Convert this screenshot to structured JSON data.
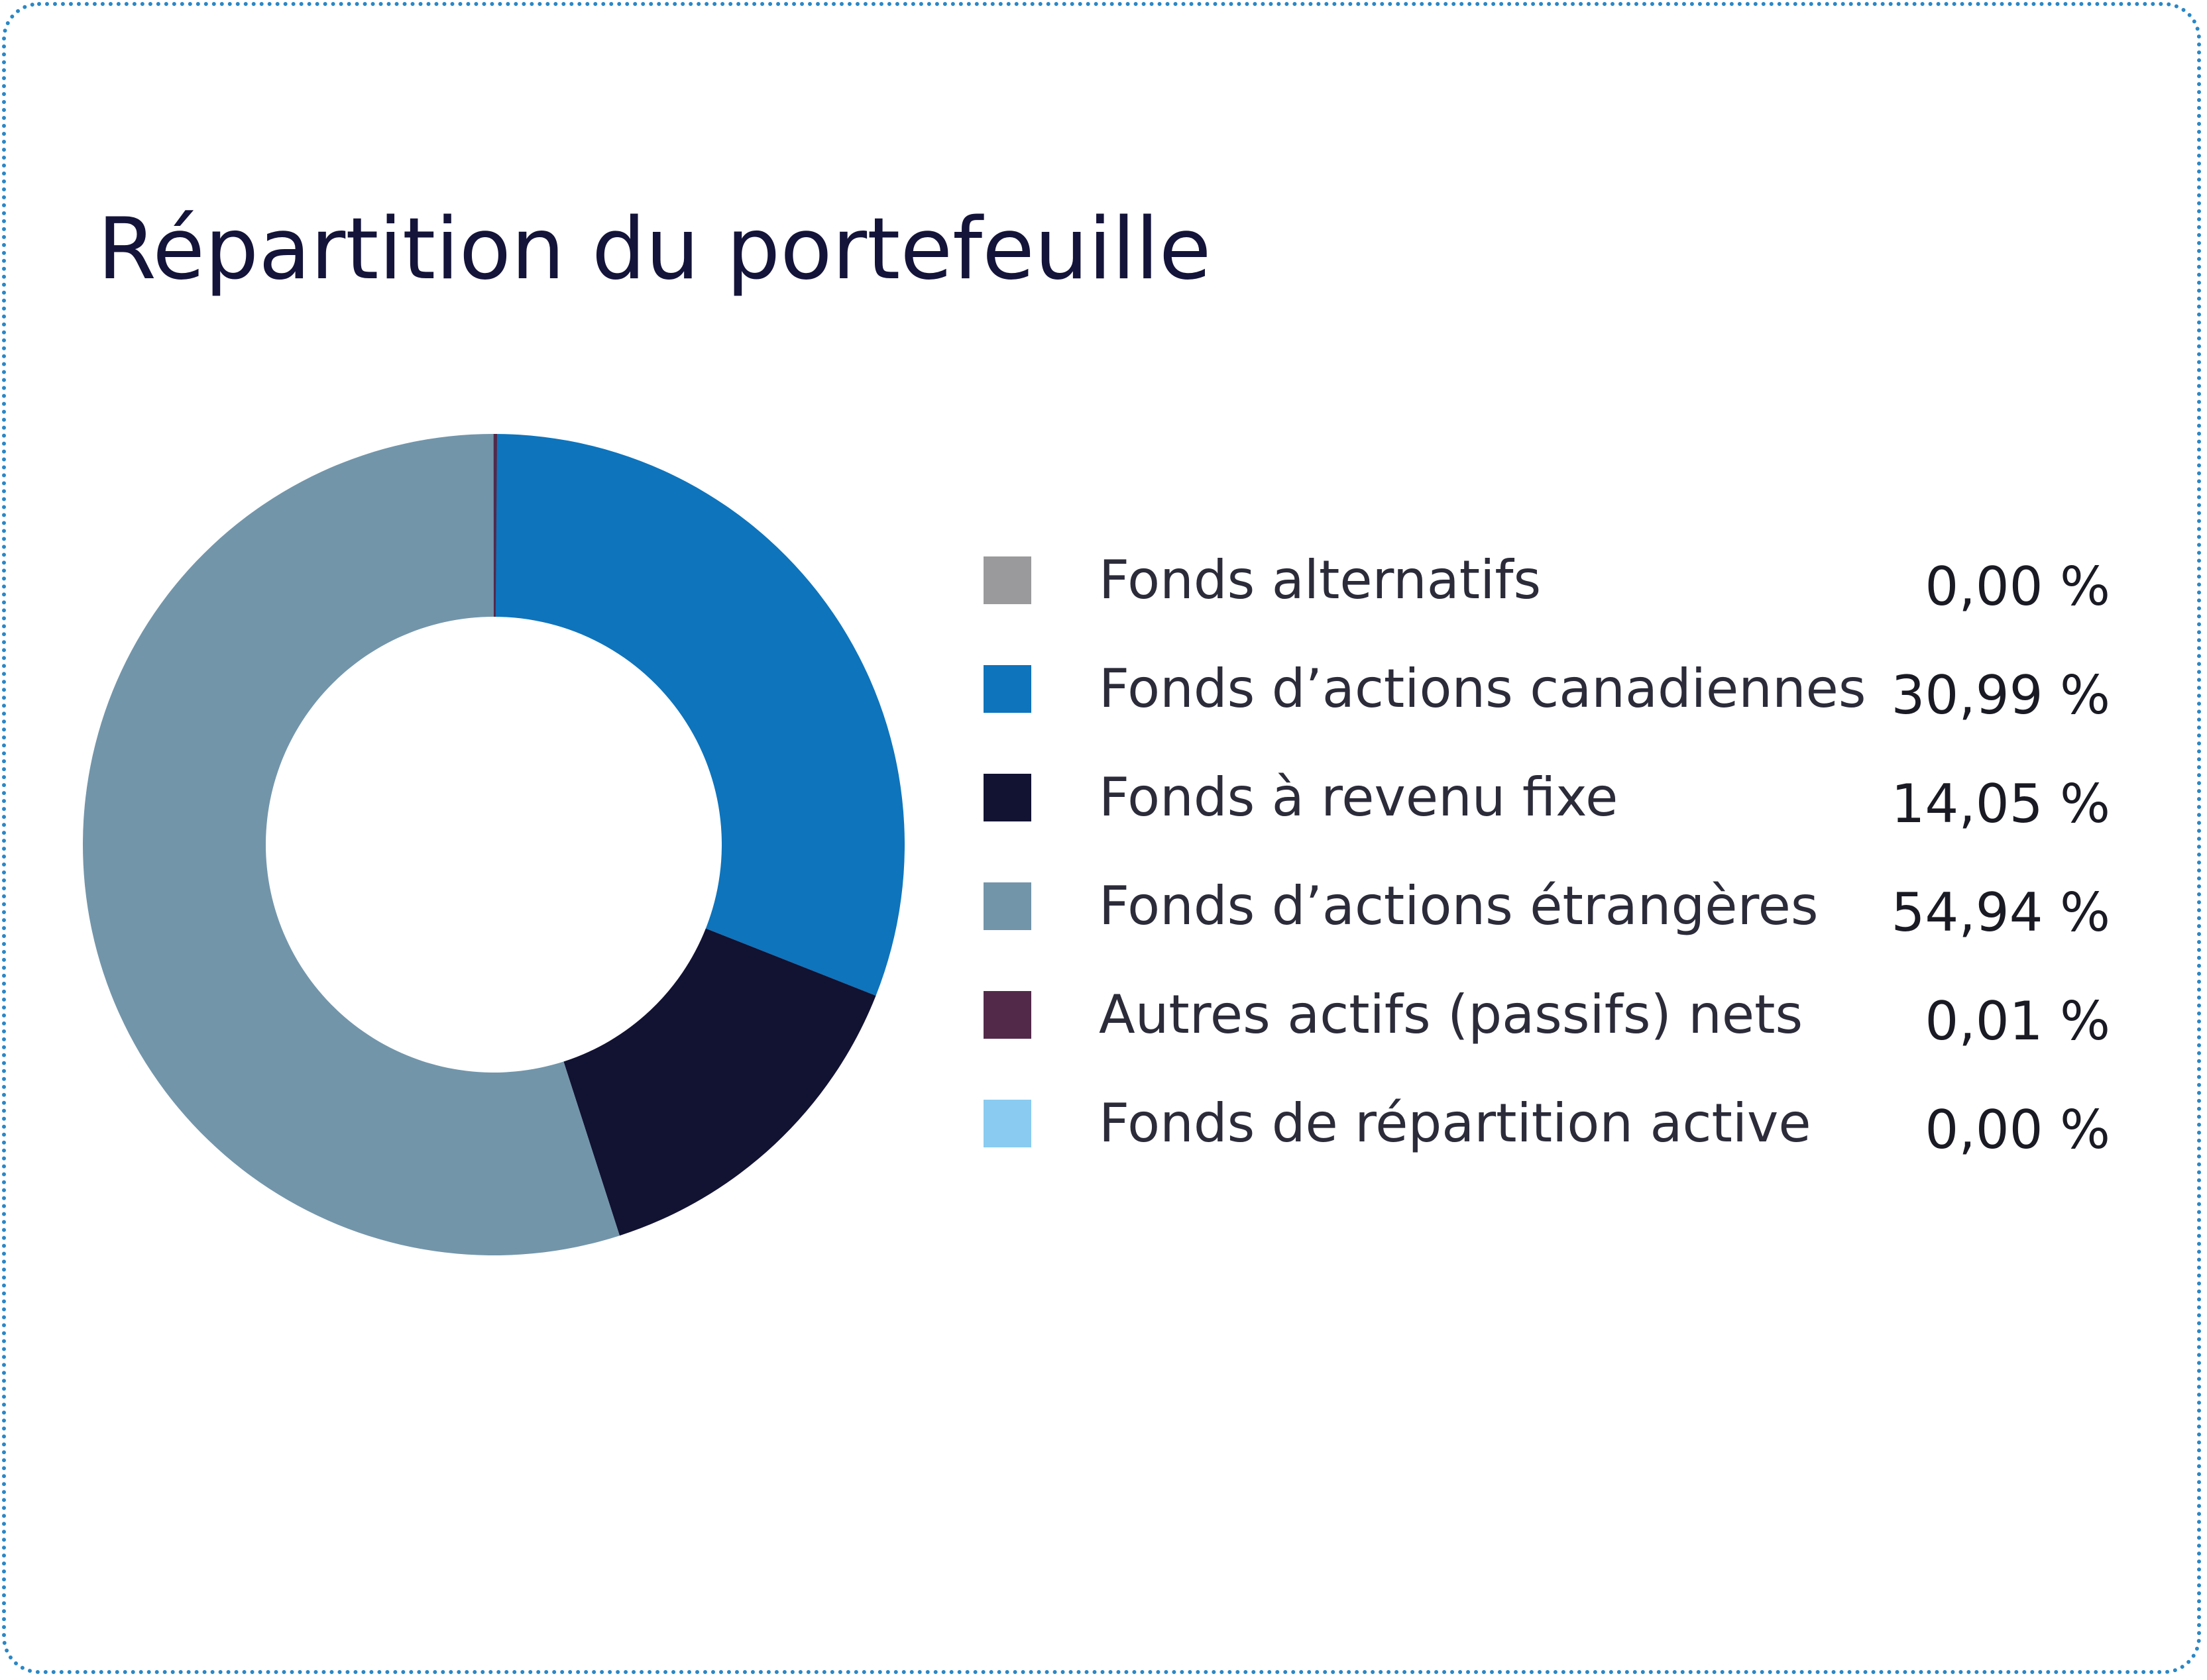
{
  "chart_data": {
    "type": "pie",
    "style": "donut",
    "title": "Répartition du portefeuille",
    "legend_position": "right",
    "start_angle_deg": 0,
    "direction": "clockwise",
    "slices": [
      {
        "label": "Fonds alternatifs",
        "value": 0.0,
        "value_label": "0,00 %",
        "color": "#9a9a9c"
      },
      {
        "label": "Fonds d’actions canadiennes",
        "value": 30.99,
        "value_label": "30,99 %",
        "color": "#0e74bc"
      },
      {
        "label": "Fonds à revenu fixe",
        "value": 14.05,
        "value_label": "14,05 %",
        "color": "#121233"
      },
      {
        "label": "Fonds d’actions étrangères",
        "value": 54.94,
        "value_label": "54,94 %",
        "color": "#7295aa"
      },
      {
        "label": "Autres actifs (passifs) nets",
        "value": 0.01,
        "value_label": "0,01 %",
        "color": "#53294a"
      },
      {
        "label": "Fonds de répartition active",
        "value": 0.0,
        "value_label": "0,00 %",
        "color": "#8acbf1"
      }
    ]
  }
}
